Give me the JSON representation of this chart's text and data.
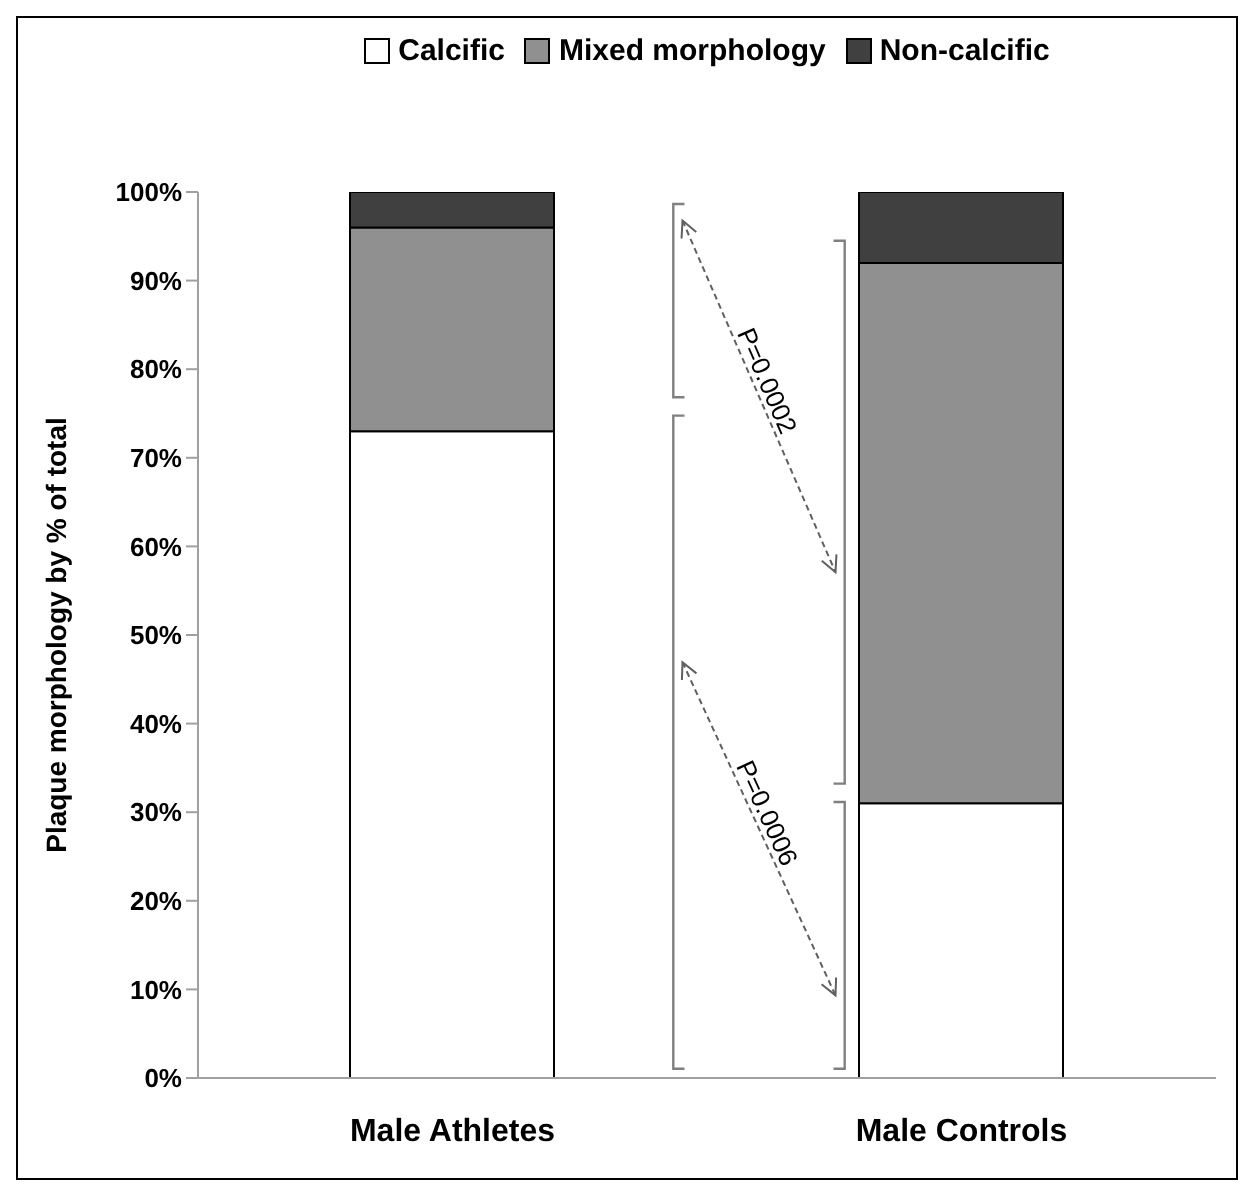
{
  "chart_data": {
    "type": "bar",
    "stacked": true,
    "ylabel": "Plaque morphology by % of total",
    "categories": [
      "Male Athletes",
      "Male Controls"
    ],
    "series": [
      {
        "name": "Calcific",
        "color": "#ffffff",
        "values": [
          73,
          31
        ]
      },
      {
        "name": "Mixed morphology",
        "color": "#909090",
        "values": [
          23,
          61
        ]
      },
      {
        "name": "Non-calcific",
        "color": "#404040",
        "values": [
          4,
          8
        ]
      }
    ],
    "ylim": [
      0,
      100
    ],
    "yticks": [
      {
        "value": 0,
        "label": "0%"
      },
      {
        "value": 10,
        "label": "10%"
      },
      {
        "value": 20,
        "label": "20%"
      },
      {
        "value": 30,
        "label": "30%"
      },
      {
        "value": 40,
        "label": "40%"
      },
      {
        "value": 50,
        "label": "50%"
      },
      {
        "value": 60,
        "label": "60%"
      },
      {
        "value": 70,
        "label": "70%"
      },
      {
        "value": 80,
        "label": "80%"
      },
      {
        "value": 90,
        "label": "90%"
      },
      {
        "value": 100,
        "label": "100%"
      }
    ],
    "annotations": [
      "P=0.0006",
      "P=0.0002"
    ],
    "legend": "top",
    "grid": false
  }
}
